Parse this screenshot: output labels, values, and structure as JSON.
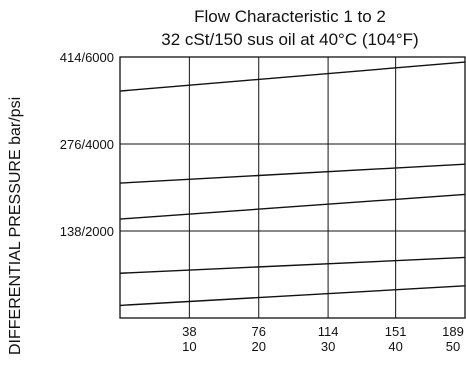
{
  "chart_data": {
    "type": "line",
    "title": "Flow Characteristic 1 to 2",
    "subtitle": "32 cSt/150 sus oil at 40°C (104°F)",
    "ylabel": "DIFFERENTIAL PRESSURE bar/psi",
    "xlabel": "",
    "y_ticks": [
      {
        "value": 138,
        "label": "138/2000"
      },
      {
        "value": 276,
        "label": "276/4000"
      },
      {
        "value": 414,
        "label": "414/6000"
      }
    ],
    "x_ticks": [
      {
        "value": 38,
        "top": "38",
        "bottom": "10"
      },
      {
        "value": 76,
        "top": "76",
        "bottom": "20"
      },
      {
        "value": 114,
        "top": "114",
        "bottom": "30"
      },
      {
        "value": 151,
        "top": "151",
        "bottom": "40"
      },
      {
        "value": 189,
        "top": "189",
        "bottom": "50"
      }
    ],
    "xlim": [
      0,
      189
    ],
    "ylim": [
      0,
      414
    ],
    "grid": true,
    "series": [
      {
        "x": [
          0,
          189
        ],
        "y": [
          360,
          406
        ]
      },
      {
        "x": [
          0,
          189
        ],
        "y": [
          214,
          244
        ]
      },
      {
        "x": [
          0,
          189
        ],
        "y": [
          157,
          196
        ]
      },
      {
        "x": [
          0,
          189
        ],
        "y": [
          71,
          96
        ]
      },
      {
        "x": [
          0,
          189
        ],
        "y": [
          20,
          51
        ]
      }
    ],
    "colors": {
      "line": "#111111",
      "frame": "#111111",
      "grid": "#111111"
    }
  }
}
